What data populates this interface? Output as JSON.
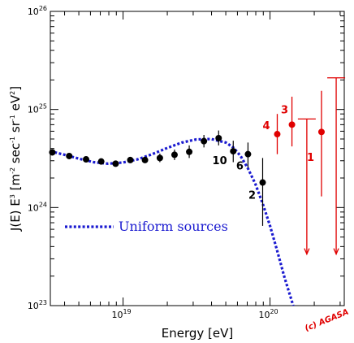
{
  "chart_data": {
    "type": "scatter",
    "title": "",
    "xlabel": "Energy [eV]",
    "ylabel_parts": {
      "prefix": "J(E) E",
      "prefix_exp": "3",
      "open": " [m",
      "m_exp": "-2",
      "sec": " sec",
      "sec_exp": "-1",
      "sr": " sr",
      "sr_exp": "-1",
      "ev": " eV",
      "ev_exp": "2",
      "close": "]"
    },
    "xscale": "log",
    "yscale": "log",
    "xlim": [
      3.2e+18,
      3.2e+20
    ],
    "ylim": [
      1e+23,
      1e+26
    ],
    "x_ticks": [
      {
        "value": 1e+19,
        "base": "10",
        "exp": "19"
      },
      {
        "value": 1e+20,
        "base": "10",
        "exp": "20"
      }
    ],
    "y_ticks": [
      {
        "value": 1e+23,
        "base": "10",
        "exp": "23"
      },
      {
        "value": 1e+24,
        "base": "10",
        "exp": "24"
      },
      {
        "value": 1e+25,
        "base": "10",
        "exp": "25"
      },
      {
        "value": 1e+26,
        "base": "10",
        "exp": "26"
      }
    ],
    "legend": {
      "label": "Uniform sources",
      "placement": "center-left"
    },
    "series": [
      {
        "name": "",
        "color": "#000000",
        "points": [
          {
            "x": 3.3e+18,
            "y": 3.65e+24,
            "ylo": 3.45e+24,
            "yhi": 3.85e+24
          },
          {
            "x": 4.3e+18,
            "y": 3.35e+24,
            "ylo": 3.2e+24,
            "yhi": 3.5e+24
          },
          {
            "x": 5.6e+18,
            "y": 3.1e+24,
            "ylo": 2.95e+24,
            "yhi": 3.25e+24
          },
          {
            "x": 7.1e+18,
            "y": 2.95e+24,
            "ylo": 2.8e+24,
            "yhi": 3.1e+24
          },
          {
            "x": 8.9e+18,
            "y": 2.8e+24,
            "ylo": 2.65e+24,
            "yhi": 2.95e+24
          },
          {
            "x": 1.12e+19,
            "y": 3.05e+24,
            "ylo": 2.85e+24,
            "yhi": 3.25e+24
          },
          {
            "x": 1.41e+19,
            "y": 3.05e+24,
            "ylo": 2.85e+24,
            "yhi": 3.3e+24
          },
          {
            "x": 1.78e+19,
            "y": 3.2e+24,
            "ylo": 2.9e+24,
            "yhi": 3.55e+24
          },
          {
            "x": 2.24e+19,
            "y": 3.45e+24,
            "ylo": 3.05e+24,
            "yhi": 3.9e+24
          },
          {
            "x": 2.82e+19,
            "y": 3.7e+24,
            "ylo": 3.2e+24,
            "yhi": 4.3e+24
          },
          {
            "x": 3.55e+19,
            "y": 4.75e+24,
            "ylo": 4.1e+24,
            "yhi": 5.5e+24
          },
          {
            "x": 4.47e+19,
            "y": 5.1e+24,
            "ylo": 4.3e+24,
            "yhi": 6.1e+24
          },
          {
            "x": 5.62e+19,
            "y": 3.75e+24,
            "ylo": 2.9e+24,
            "yhi": 4.8e+24
          },
          {
            "x": 7.08e+19,
            "y": 3.5e+24,
            "ylo": 2.55e+24,
            "yhi": 4.6e+24
          },
          {
            "x": 8.91e+19,
            "y": 1.8e+24,
            "ylo": 6.5e+23,
            "yhi": 3.2e+24
          }
        ],
        "annotations": [
          {
            "label": "10",
            "x": 5.1e+19,
            "y": 3.05e+24
          },
          {
            "label": "6",
            "x": 6.6e+19,
            "y": 2.7e+24
          },
          {
            "label": "2",
            "x": 8e+19,
            "y": 1.35e+24
          }
        ]
      },
      {
        "name": "",
        "color": "#e00000",
        "points": [
          {
            "x": 1.12e+20,
            "y": 5.6e+24,
            "ylo": 3.5e+24,
            "yhi": 9e+24
          },
          {
            "x": 1.41e+20,
            "y": 7e+24,
            "ylo": 4.2e+24,
            "yhi": 1.35e+25
          },
          {
            "x": 2.24e+20,
            "y": 5.9e+24,
            "ylo": 1.3e+24,
            "yhi": 1.55e+25
          }
        ],
        "upper_limits": [
          {
            "x": 1.78e+20,
            "y": 8e+24,
            "arrow_to": 3.35e+23
          },
          {
            "x": 2.82e+20,
            "y": 2.1e+25,
            "arrow_to": 3.35e+23
          }
        ],
        "annotations": [
          {
            "label": "4",
            "x": 1e+20,
            "y": 6.9e+24
          },
          {
            "label": "3",
            "x": 1.33e+20,
            "y": 1e+25
          },
          {
            "label": "1",
            "x": 2e+20,
            "y": 3.3e+24
          }
        ]
      }
    ],
    "model_curve": {
      "name": "Uniform sources",
      "color": "#1a1ad0",
      "style": "dotted",
      "x": [
        3.2e+18,
        4e+18,
        5e+18,
        6.3e+18,
        7.9e+18,
        1e+19,
        1.26e+19,
        1.58e+19,
        2e+19,
        2.51e+19,
        3.16e+19,
        3.98e+19,
        5.01e+19,
        5.62e+19,
        6.31e+19,
        7.08e+19,
        7.94e+19,
        8.91e+19,
        1e+20,
        1.12e+20,
        1.26e+20,
        1.41e+20,
        1.5e+20
      ],
      "y": [
        3.75e+24,
        3.45e+24,
        3.15e+24,
        2.9e+24,
        2.8e+24,
        2.88e+24,
        3.1e+24,
        3.5e+24,
        4.05e+24,
        4.6e+24,
        4.95e+24,
        5e+24,
        4.6e+24,
        4.1e+24,
        3.35e+24,
        2.5e+24,
        1.75e+24,
        1.1e+24,
        6.5e+23,
        3.6e+23,
        1.9e+23,
        1.1e+23,
        8e+22
      ]
    },
    "credit": "(c) AGASA"
  }
}
